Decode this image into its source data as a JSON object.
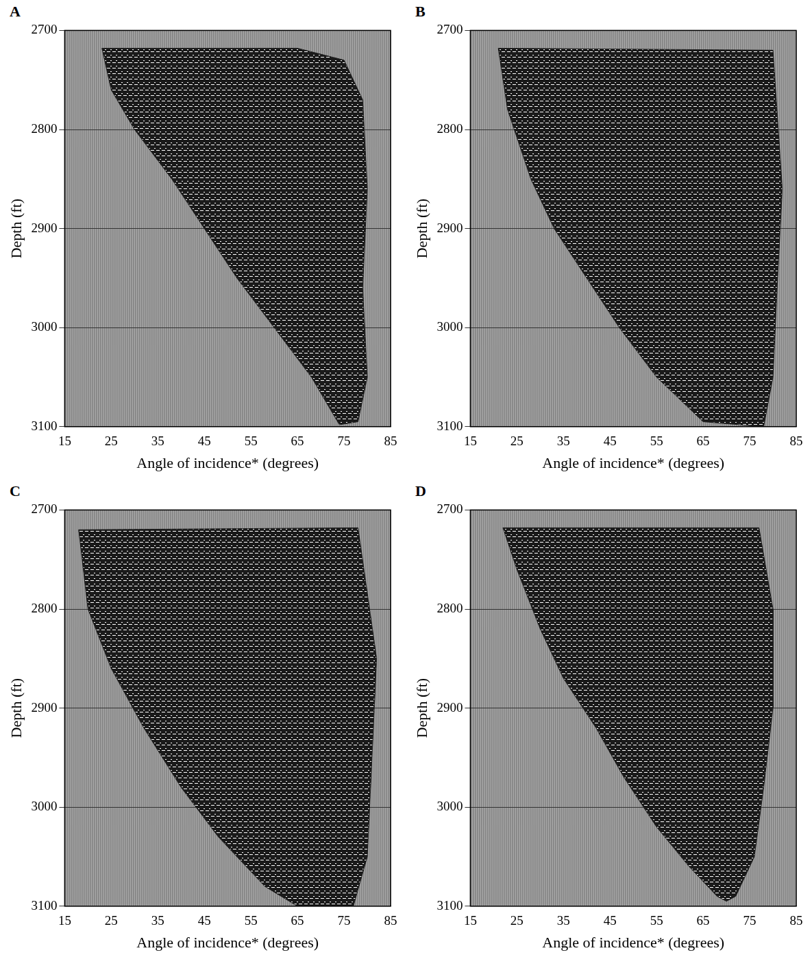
{
  "chart_data": [
    {
      "type": "area",
      "title": "A",
      "x_label": "Angle of incidence* (degrees)",
      "y_label": "Depth (ft)",
      "xlim": [
        15,
        85
      ],
      "xticks": [
        15,
        25,
        35,
        45,
        55,
        65,
        75,
        85
      ],
      "ylim": [
        2700,
        3100
      ],
      "yticks": [
        2700,
        2800,
        2900,
        3000,
        3100
      ],
      "grid": true,
      "series": [
        {
          "color": "#1a1a1a",
          "x": [
            23,
            65,
            75,
            79,
            80,
            79,
            80,
            78,
            74,
            68,
            60,
            52,
            45,
            38,
            30,
            25,
            23
          ],
          "values": [
            2718,
            2718,
            2730,
            2770,
            2860,
            2960,
            3050,
            3095,
            3098,
            3050,
            3000,
            2950,
            2900,
            2850,
            2800,
            2760,
            2718
          ]
        }
      ]
    },
    {
      "type": "area",
      "title": "B",
      "x_label": "Angle of incidence* (degrees)",
      "y_label": "Depth (ft)",
      "xlim": [
        15,
        85
      ],
      "xticks": [
        15,
        25,
        35,
        45,
        55,
        65,
        75,
        85
      ],
      "ylim": [
        2700,
        3100
      ],
      "yticks": [
        2700,
        2800,
        2900,
        3000,
        3100
      ],
      "grid": true,
      "series": [
        {
          "color": "#1a1a1a",
          "x": [
            21,
            80,
            82,
            81,
            80,
            78,
            65,
            55,
            47,
            40,
            33,
            28,
            23,
            21
          ],
          "values": [
            2718,
            2720,
            2860,
            2950,
            3050,
            3100,
            3095,
            3050,
            3000,
            2950,
            2900,
            2850,
            2780,
            2718
          ]
        }
      ]
    },
    {
      "type": "area",
      "title": "C",
      "x_label": "Angle of incidence* (degrees)",
      "y_label": "Depth (ft)",
      "xlim": [
        15,
        85
      ],
      "xticks": [
        15,
        25,
        35,
        45,
        55,
        65,
        75,
        85
      ],
      "ylim": [
        2700,
        3100
      ],
      "yticks": [
        2700,
        2800,
        2900,
        3000,
        3100
      ],
      "grid": true,
      "series": [
        {
          "color": "#1a1a1a",
          "x": [
            18,
            78,
            82,
            81,
            80,
            77,
            65,
            58,
            48,
            40,
            32,
            25,
            20,
            18
          ],
          "values": [
            2720,
            2718,
            2850,
            2950,
            3050,
            3100,
            3100,
            3080,
            3030,
            2980,
            2920,
            2860,
            2800,
            2720
          ]
        }
      ]
    },
    {
      "type": "area",
      "title": "D",
      "x_label": "Angle of incidence* (degrees)",
      "y_label": "Depth (ft)",
      "xlim": [
        15,
        85
      ],
      "xticks": [
        15,
        25,
        35,
        45,
        55,
        65,
        75,
        85
      ],
      "ylim": [
        2700,
        3100
      ],
      "yticks": [
        2700,
        2800,
        2900,
        3000,
        3100
      ],
      "grid": true,
      "series": [
        {
          "color": "#1a1a1a",
          "x": [
            22,
            77,
            80,
            80,
            78,
            76,
            72,
            70,
            68,
            62,
            55,
            48,
            42,
            35,
            30,
            25,
            22
          ],
          "values": [
            2718,
            2718,
            2800,
            2900,
            2980,
            3050,
            3090,
            3095,
            3090,
            3060,
            3020,
            2970,
            2920,
            2870,
            2820,
            2760,
            2718
          ]
        }
      ]
    }
  ]
}
